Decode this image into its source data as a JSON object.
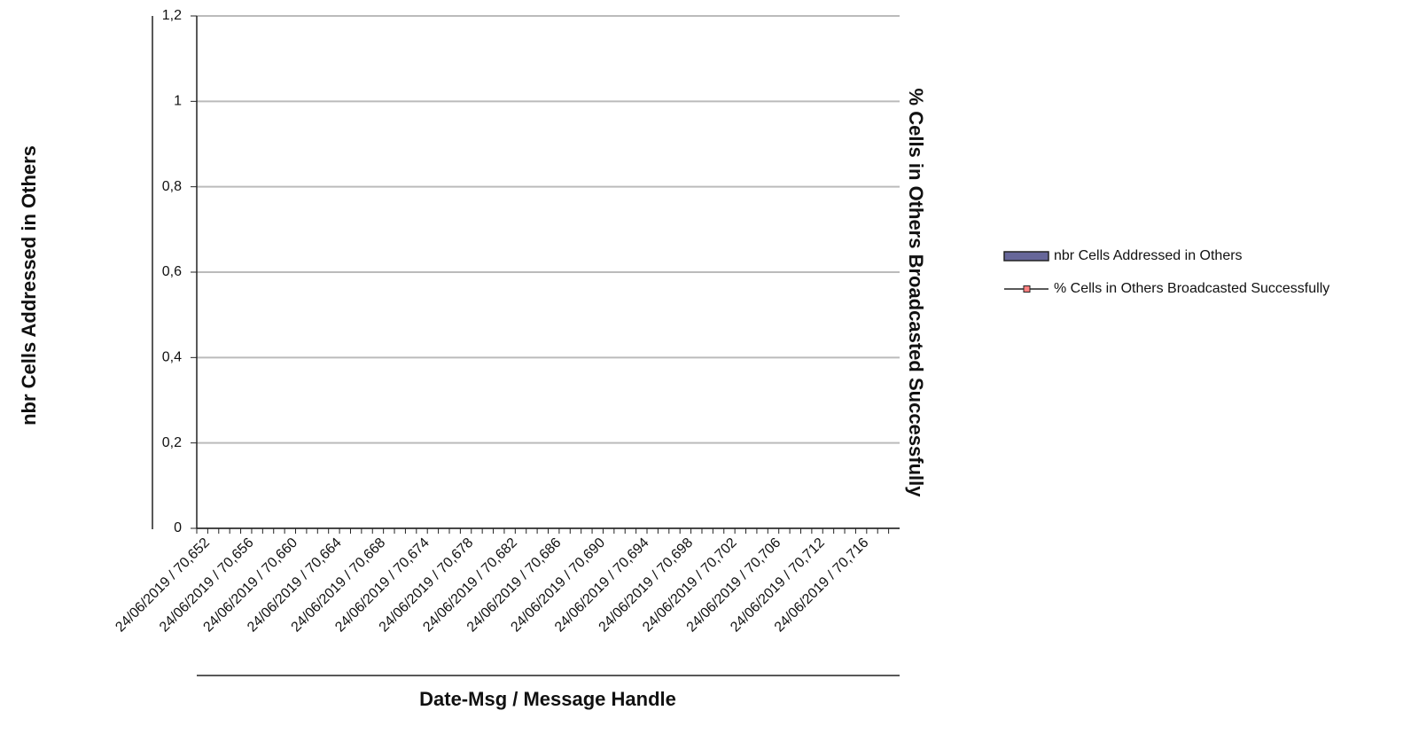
{
  "chart_data": {
    "type": "bar",
    "x_label": "Date-Msg / Message Handle",
    "y_label": "nbr Cells Addressed in Others",
    "y2_label": "% Cells in Others Broadcasted Successfully",
    "categories": [
      "24/06/2019 / 70,652",
      null,
      null,
      null,
      "24/06/2019 / 70,656",
      null,
      null,
      null,
      "24/06/2019 / 70,660",
      null,
      null,
      null,
      "24/06/2019 / 70,664",
      null,
      null,
      null,
      "24/06/2019 / 70,668",
      null,
      null,
      null,
      "24/06/2019 / 70,674",
      null,
      null,
      null,
      "24/06/2019 / 70,678",
      null,
      null,
      null,
      "24/06/2019 / 70,682",
      null,
      null,
      null,
      "24/06/2019 / 70,686",
      null,
      null,
      null,
      "24/06/2019 / 70,690",
      null,
      null,
      null,
      "24/06/2019 / 70,694",
      null,
      null,
      null,
      "24/06/2019 / 70,698",
      null,
      null,
      null,
      "24/06/2019 / 70,702",
      null,
      null,
      null,
      "24/06/2019 / 70,706",
      null,
      null,
      null,
      "24/06/2019 / 70,712",
      null,
      null,
      null,
      "24/06/2019 / 70,716",
      null,
      null,
      null
    ],
    "series": [
      {
        "name": "nbr Cells Addressed in Others",
        "color": "#666699",
        "kind": "bar",
        "values": [
          null,
          null,
          null,
          null,
          null,
          null,
          null,
          null,
          null,
          null,
          null,
          null,
          null,
          null,
          null,
          null,
          null,
          null,
          null,
          null,
          null,
          null,
          null,
          null,
          null,
          null,
          null,
          null,
          null,
          null,
          null,
          null,
          null,
          null,
          null,
          null,
          null,
          null,
          null,
          null,
          null,
          null,
          null,
          null,
          null,
          null,
          null,
          null,
          null,
          null,
          null,
          null,
          null,
          null,
          null,
          null,
          null,
          null,
          null,
          null,
          null,
          null,
          null,
          null
        ]
      },
      {
        "name": "% Cells in Others Broadcasted Successfully",
        "color": "#ff8080",
        "kind": "line",
        "values": [
          null,
          null,
          null,
          null,
          null,
          null,
          null,
          null,
          null,
          null,
          null,
          null,
          null,
          null,
          null,
          null,
          null,
          null,
          null,
          null,
          null,
          null,
          null,
          null,
          null,
          null,
          null,
          null,
          null,
          null,
          null,
          null,
          null,
          null,
          null,
          null,
          null,
          null,
          null,
          null,
          null,
          null,
          null,
          null,
          null,
          null,
          null,
          null,
          null,
          null,
          null,
          null,
          null,
          null,
          null,
          null,
          null,
          null,
          null,
          null,
          null,
          null,
          null,
          null
        ]
      }
    ],
    "ylim": [
      0,
      1.2
    ],
    "yticks": [
      0,
      {
        "value": 0.2,
        "label": "0,2"
      },
      {
        "value": 0.4,
        "label": "0,4"
      },
      {
        "value": 0.6,
        "label": "0,6"
      },
      {
        "value": 0.8,
        "label": "0,8"
      },
      1,
      {
        "value": 1.2,
        "label": "1,2"
      }
    ],
    "grid": true,
    "legend": "right"
  }
}
